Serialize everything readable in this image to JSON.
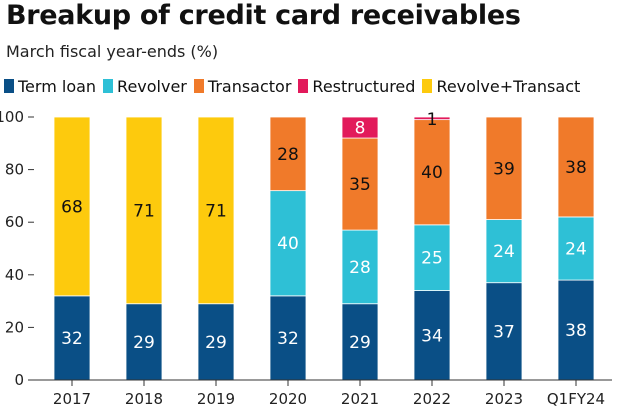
{
  "chart_data": {
    "type": "bar",
    "stacked": true,
    "title": "Breakup of credit card receivables",
    "subtitle": "March fiscal year-ends (%)",
    "categories": [
      "2017",
      "2018",
      "2019",
      "2020",
      "2021",
      "2022",
      "2023",
      "Q1FY24"
    ],
    "ylim": [
      0,
      100
    ],
    "yticks": [
      0,
      20,
      40,
      60,
      80,
      100
    ],
    "grid": false,
    "legend_position": "top",
    "series": [
      {
        "name": "Term loan",
        "color": "#0a4f86",
        "label_color": "#ffffff",
        "values": [
          32,
          29,
          29,
          32,
          29,
          34,
          37,
          38
        ]
      },
      {
        "name": "Revolver",
        "color": "#2ec0d6",
        "label_color": "#ffffff",
        "values": [
          0,
          0,
          0,
          40,
          28,
          25,
          24,
          24
        ]
      },
      {
        "name": "Transactor",
        "color": "#f07a2a",
        "label_color": "#111111",
        "values": [
          0,
          0,
          0,
          28,
          35,
          40,
          39,
          38
        ]
      },
      {
        "name": "Restructured",
        "color": "#e21a5b",
        "label_color": "#ffffff",
        "values": [
          0,
          0,
          0,
          0,
          8,
          1,
          0,
          0
        ]
      },
      {
        "name": "Revolve+Transact",
        "color": "#fdca0d",
        "label_color": "#111111",
        "values": [
          68,
          71,
          71,
          0,
          0,
          0,
          0,
          0
        ]
      }
    ]
  }
}
